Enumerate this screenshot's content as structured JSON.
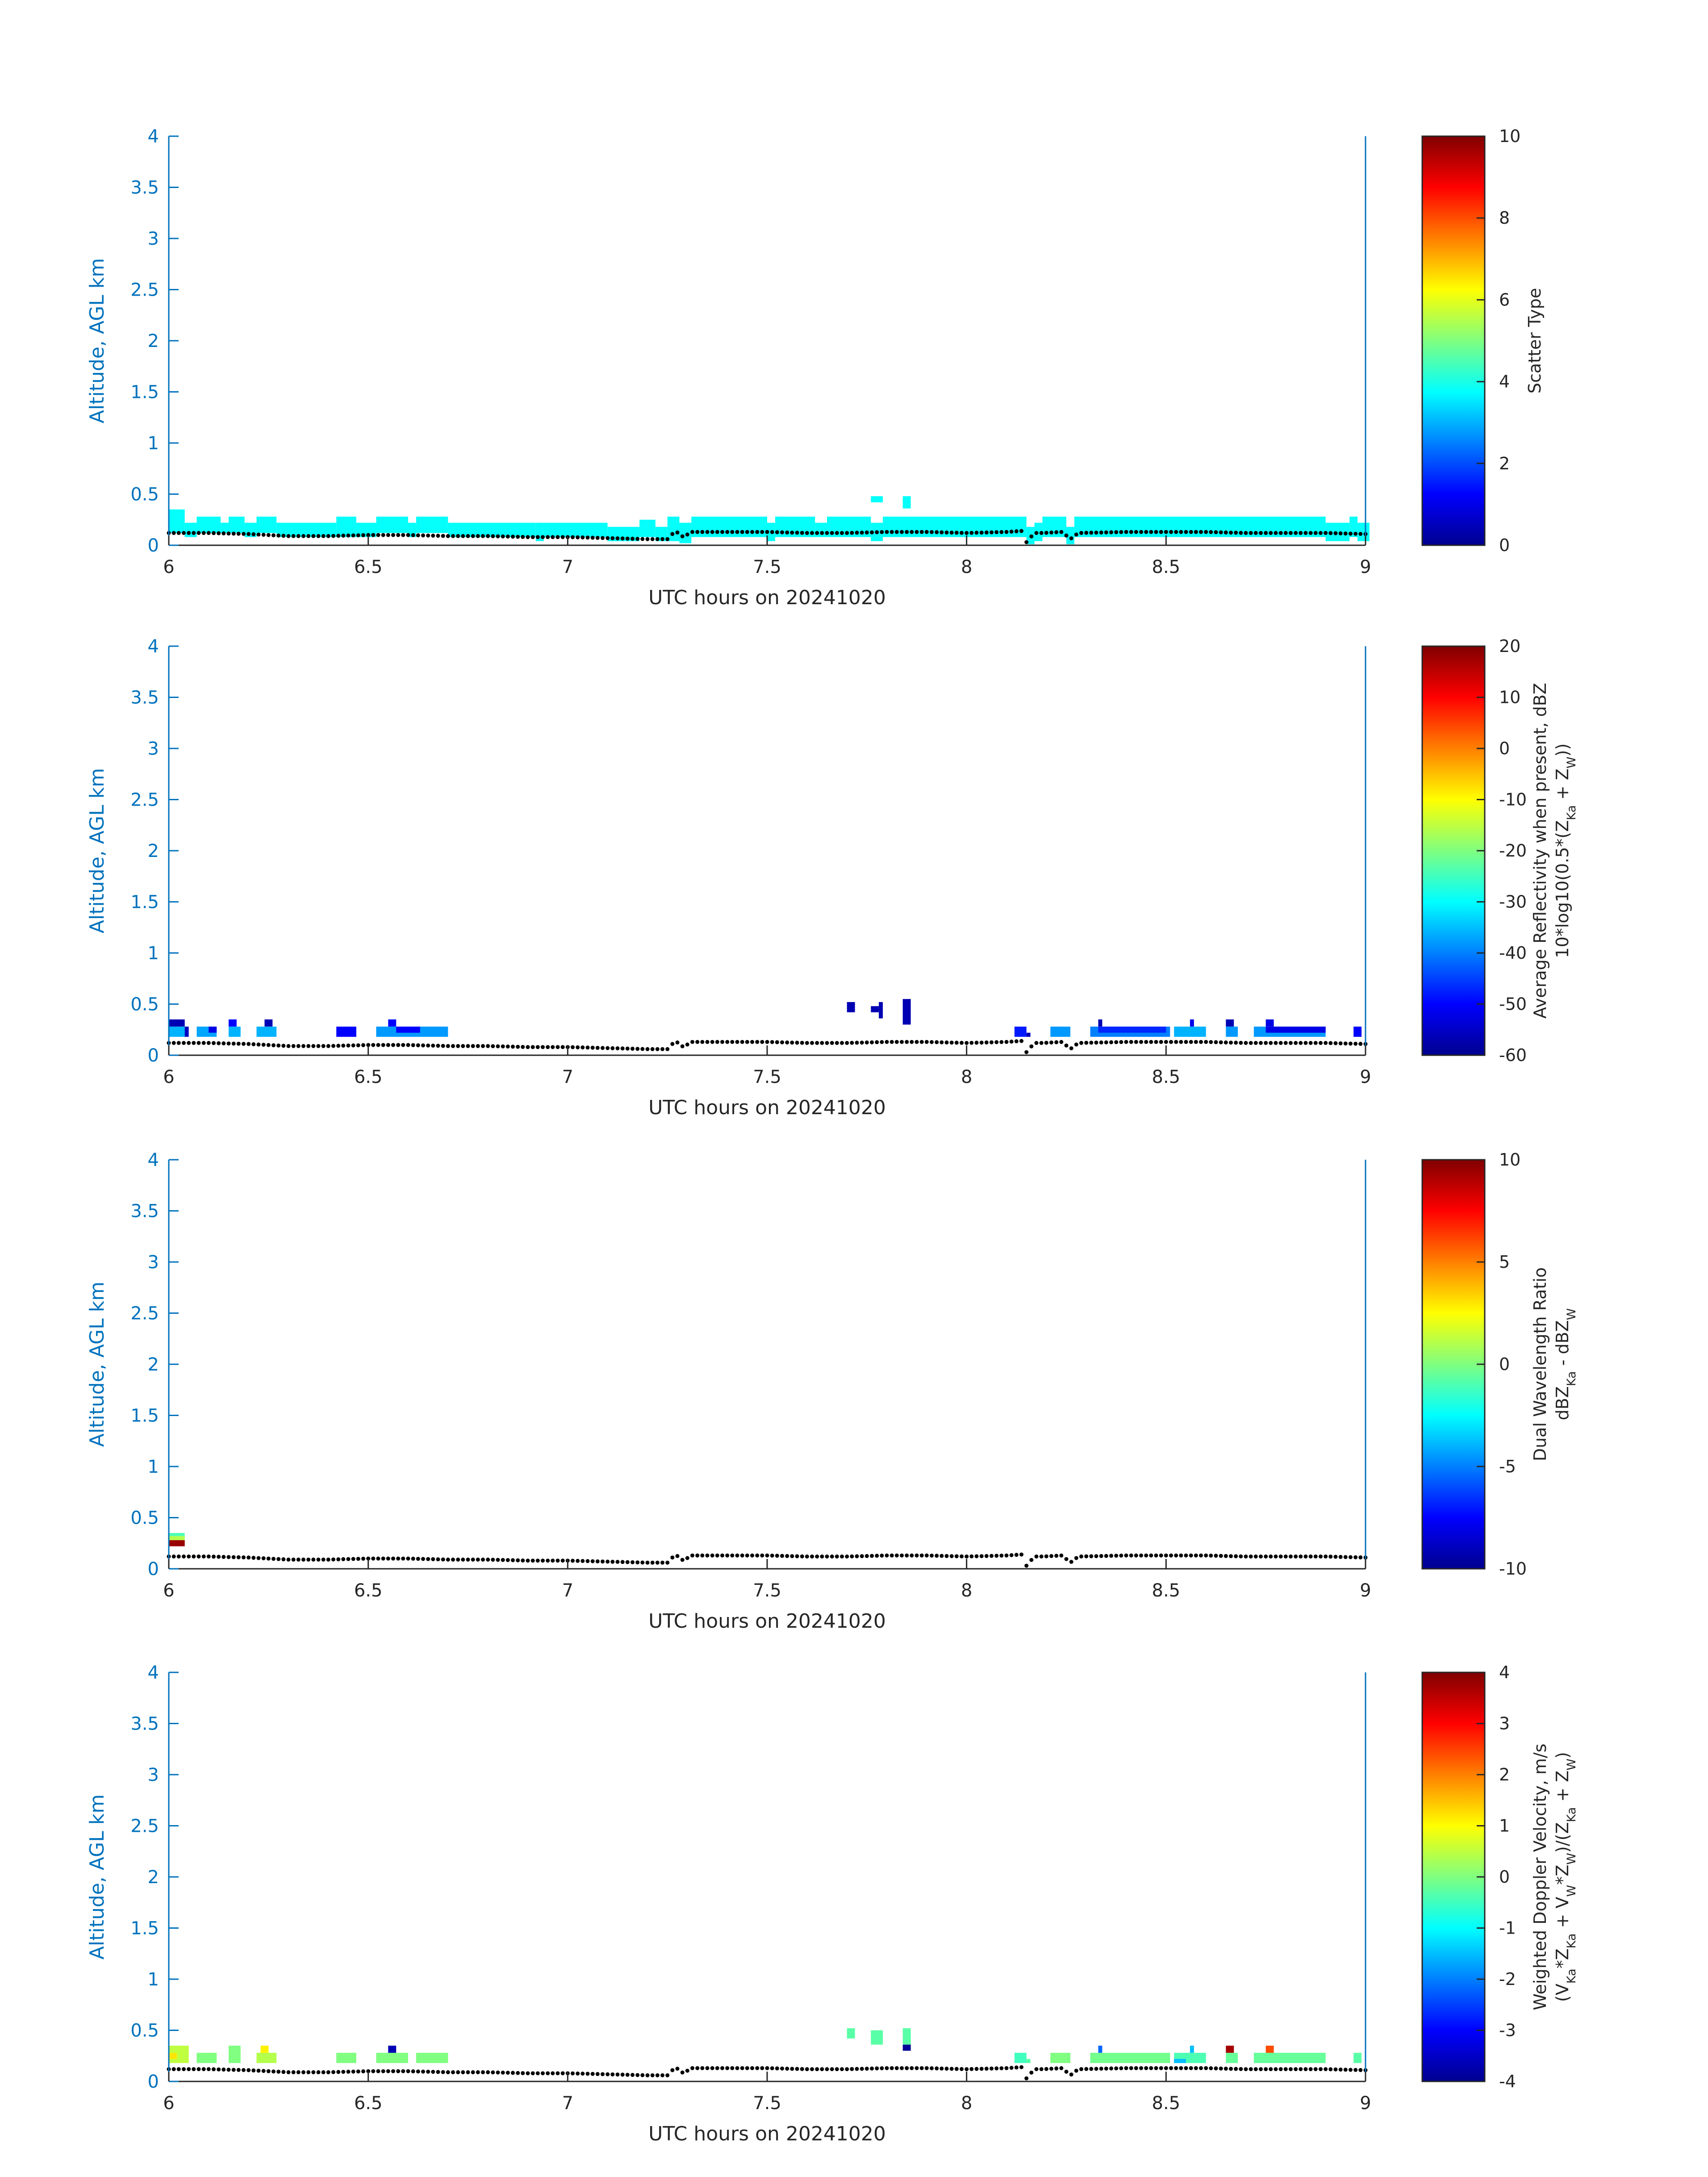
{
  "figure": {
    "colors": {
      "axis_blue": "#0072bd",
      "text_dark": "#262626",
      "ground": "#000000",
      "cb_border": "#262626"
    }
  },
  "chart_data": [
    {
      "type": "heatmap",
      "xlabel": "UTC hours on 20241020",
      "ylabel": "Altitude, AGL km",
      "xlim": [
        6,
        9
      ],
      "ylim": [
        0,
        4
      ],
      "xticks": [
        "6",
        "6.5",
        "7",
        "7.5",
        "8",
        "8.5",
        "9"
      ],
      "yticks": [
        "0",
        "0.5",
        "1",
        "1.5",
        "2",
        "2.5",
        "3",
        "3.5",
        "4"
      ],
      "colorbar": {
        "label_lines": [
          "Scatter Type"
        ],
        "clim": [
          0,
          10
        ],
        "ticks": [
          "0",
          "2",
          "4",
          "6",
          "8",
          "10"
        ]
      },
      "cells": [
        {
          "t0": 6.0,
          "t1": 6.04,
          "z0": 0.12,
          "z1": 0.35,
          "v": 3.8
        },
        {
          "t0": 6.04,
          "t1": 6.07,
          "z0": 0.08,
          "z1": 0.22,
          "v": 3.8
        },
        {
          "t0": 6.07,
          "t1": 6.13,
          "z0": 0.12,
          "z1": 0.28,
          "v": 3.8
        },
        {
          "t0": 6.13,
          "t1": 6.15,
          "z0": 0.12,
          "z1": 0.22,
          "v": 3.8
        },
        {
          "t0": 6.15,
          "t1": 6.19,
          "z0": 0.12,
          "z1": 0.28,
          "v": 3.8
        },
        {
          "t0": 6.19,
          "t1": 6.22,
          "z0": 0.08,
          "z1": 0.22,
          "v": 3.8
        },
        {
          "t0": 6.22,
          "t1": 6.27,
          "z0": 0.12,
          "z1": 0.28,
          "v": 3.8
        },
        {
          "t0": 6.27,
          "t1": 6.42,
          "z0": 0.08,
          "z1": 0.22,
          "v": 3.8
        },
        {
          "t0": 6.42,
          "t1": 6.47,
          "z0": 0.08,
          "z1": 0.28,
          "v": 3.8
        },
        {
          "t0": 6.47,
          "t1": 6.52,
          "z0": 0.08,
          "z1": 0.22,
          "v": 3.8
        },
        {
          "t0": 6.52,
          "t1": 6.6,
          "z0": 0.12,
          "z1": 0.28,
          "v": 3.8
        },
        {
          "t0": 6.6,
          "t1": 6.62,
          "z0": 0.08,
          "z1": 0.22,
          "v": 3.8
        },
        {
          "t0": 6.62,
          "t1": 6.7,
          "z0": 0.12,
          "z1": 0.28,
          "v": 3.8
        },
        {
          "t0": 6.7,
          "t1": 6.92,
          "z0": 0.08,
          "z1": 0.22,
          "v": 3.8
        },
        {
          "t0": 6.92,
          "t1": 6.94,
          "z0": 0.04,
          "z1": 0.22,
          "v": 3.8
        },
        {
          "t0": 6.94,
          "t1": 7.1,
          "z0": 0.08,
          "z1": 0.22,
          "v": 3.8
        },
        {
          "t0": 7.1,
          "t1": 7.18,
          "z0": 0.04,
          "z1": 0.18,
          "v": 3.8
        },
        {
          "t0": 7.18,
          "t1": 7.22,
          "z0": 0.08,
          "z1": 0.25,
          "v": 3.8
        },
        {
          "t0": 7.22,
          "t1": 7.25,
          "z0": 0.04,
          "z1": 0.18,
          "v": 3.8
        },
        {
          "t0": 7.25,
          "t1": 7.28,
          "z0": 0.04,
          "z1": 0.28,
          "v": 3.8
        },
        {
          "t0": 7.28,
          "t1": 7.31,
          "z0": 0.02,
          "z1": 0.22,
          "v": 3.8
        },
        {
          "t0": 7.31,
          "t1": 7.5,
          "z0": 0.08,
          "z1": 0.28,
          "v": 3.8
        },
        {
          "t0": 7.5,
          "t1": 7.52,
          "z0": 0.04,
          "z1": 0.22,
          "v": 3.8
        },
        {
          "t0": 7.52,
          "t1": 7.62,
          "z0": 0.08,
          "z1": 0.28,
          "v": 3.8
        },
        {
          "t0": 7.62,
          "t1": 7.65,
          "z0": 0.08,
          "z1": 0.22,
          "v": 3.8
        },
        {
          "t0": 7.65,
          "t1": 7.76,
          "z0": 0.08,
          "z1": 0.28,
          "v": 3.8
        },
        {
          "t0": 7.76,
          "t1": 7.79,
          "z0": 0.04,
          "z1": 0.22,
          "v": 3.8
        },
        {
          "t0": 7.79,
          "t1": 8.15,
          "z0": 0.08,
          "z1": 0.28,
          "v": 3.8
        },
        {
          "t0": 8.15,
          "t1": 8.17,
          "z0": 0.01,
          "z1": 0.18,
          "v": 3.8
        },
        {
          "t0": 8.17,
          "t1": 8.19,
          "z0": 0.04,
          "z1": 0.22,
          "v": 3.8
        },
        {
          "t0": 8.19,
          "t1": 8.25,
          "z0": 0.08,
          "z1": 0.28,
          "v": 3.8
        },
        {
          "t0": 8.25,
          "t1": 8.27,
          "z0": 0.01,
          "z1": 0.18,
          "v": 3.8
        },
        {
          "t0": 8.27,
          "t1": 8.9,
          "z0": 0.08,
          "z1": 0.28,
          "v": 3.8
        },
        {
          "t0": 8.9,
          "t1": 8.96,
          "z0": 0.04,
          "z1": 0.22,
          "v": 3.8
        },
        {
          "t0": 8.96,
          "t1": 8.98,
          "z0": 0.08,
          "z1": 0.28,
          "v": 3.8
        },
        {
          "t0": 8.98,
          "t1": 9.01,
          "z0": 0.04,
          "z1": 0.22,
          "v": 3.8
        },
        {
          "t0": 7.76,
          "t1": 7.79,
          "z0": 0.42,
          "z1": 0.48,
          "v": 3.8
        },
        {
          "t0": 7.84,
          "t1": 7.86,
          "z0": 0.36,
          "z1": 0.48,
          "v": 3.8
        }
      ]
    },
    {
      "type": "heatmap",
      "xlabel": "UTC hours on 20241020",
      "ylabel": "Altitude, AGL km",
      "xlim": [
        6,
        9
      ],
      "ylim": [
        0,
        4
      ],
      "xticks": [
        "6",
        "6.5",
        "7",
        "7.5",
        "8",
        "8.5",
        "9"
      ],
      "yticks": [
        "0",
        "0.5",
        "1",
        "1.5",
        "2",
        "2.5",
        "3",
        "3.5",
        "4"
      ],
      "colorbar": {
        "label_lines": [
          "Average Reflectivity when present, dBZ",
          "10*log10(0.5*(Z_{Ka} + Z_{W}))"
        ],
        "clim": [
          -60,
          20
        ],
        "ticks": [
          "-60",
          "-50",
          "-40",
          "-30",
          "-20",
          "-10",
          "0",
          "10",
          "20"
        ]
      },
      "cells": [
        {
          "t0": 6.0,
          "t1": 6.04,
          "z0": 0.18,
          "z1": 0.28,
          "v": -36
        },
        {
          "t0": 6.0,
          "t1": 6.04,
          "z0": 0.28,
          "z1": 0.35,
          "v": -56
        },
        {
          "t0": 6.04,
          "t1": 6.05,
          "z0": 0.18,
          "z1": 0.28,
          "v": -55
        },
        {
          "t0": 6.07,
          "t1": 6.12,
          "z0": 0.18,
          "z1": 0.28,
          "v": -37
        },
        {
          "t0": 6.1,
          "t1": 6.12,
          "z0": 0.22,
          "z1": 0.28,
          "v": -52
        },
        {
          "t0": 6.15,
          "t1": 6.18,
          "z0": 0.18,
          "z1": 0.28,
          "v": -36
        },
        {
          "t0": 6.15,
          "t1": 6.17,
          "z0": 0.28,
          "z1": 0.35,
          "v": -50
        },
        {
          "t0": 6.22,
          "t1": 6.27,
          "z0": 0.18,
          "z1": 0.28,
          "v": -36
        },
        {
          "t0": 6.24,
          "t1": 6.26,
          "z0": 0.28,
          "z1": 0.35,
          "v": -56
        },
        {
          "t0": 6.42,
          "t1": 6.47,
          "z0": 0.18,
          "z1": 0.28,
          "v": -50
        },
        {
          "t0": 6.52,
          "t1": 6.7,
          "z0": 0.18,
          "z1": 0.28,
          "v": -38
        },
        {
          "t0": 6.55,
          "t1": 6.57,
          "z0": 0.28,
          "z1": 0.35,
          "v": -50
        },
        {
          "t0": 6.57,
          "t1": 6.63,
          "z0": 0.22,
          "z1": 0.28,
          "v": -50
        },
        {
          "t0": 7.7,
          "t1": 7.72,
          "z0": 0.42,
          "z1": 0.52,
          "v": -56
        },
        {
          "t0": 7.76,
          "t1": 7.78,
          "z0": 0.42,
          "z1": 0.48,
          "v": -56
        },
        {
          "t0": 7.78,
          "t1": 7.79,
          "z0": 0.36,
          "z1": 0.52,
          "v": -56
        },
        {
          "t0": 7.84,
          "t1": 7.86,
          "z0": 0.3,
          "z1": 0.55,
          "v": -56
        },
        {
          "t0": 8.12,
          "t1": 8.15,
          "z0": 0.18,
          "z1": 0.28,
          "v": -48
        },
        {
          "t0": 8.15,
          "t1": 8.16,
          "z0": 0.18,
          "z1": 0.22,
          "v": -56
        },
        {
          "t0": 8.21,
          "t1": 8.26,
          "z0": 0.18,
          "z1": 0.28,
          "v": -38
        },
        {
          "t0": 8.31,
          "t1": 8.51,
          "z0": 0.18,
          "z1": 0.28,
          "v": -40
        },
        {
          "t0": 8.33,
          "t1": 8.5,
          "z0": 0.22,
          "z1": 0.28,
          "v": -47
        },
        {
          "t0": 8.33,
          "t1": 8.34,
          "z0": 0.28,
          "z1": 0.35,
          "v": -56
        },
        {
          "t0": 8.52,
          "t1": 8.6,
          "z0": 0.18,
          "z1": 0.28,
          "v": -36
        },
        {
          "t0": 8.56,
          "t1": 8.57,
          "z0": 0.28,
          "z1": 0.35,
          "v": -52
        },
        {
          "t0": 8.65,
          "t1": 8.68,
          "z0": 0.18,
          "z1": 0.28,
          "v": -38
        },
        {
          "t0": 8.65,
          "t1": 8.67,
          "z0": 0.28,
          "z1": 0.35,
          "v": -56
        },
        {
          "t0": 8.72,
          "t1": 8.9,
          "z0": 0.18,
          "z1": 0.28,
          "v": -38
        },
        {
          "t0": 8.75,
          "t1": 8.9,
          "z0": 0.22,
          "z1": 0.28,
          "v": -52
        },
        {
          "t0": 8.75,
          "t1": 8.77,
          "z0": 0.28,
          "z1": 0.35,
          "v": -52
        },
        {
          "t0": 8.97,
          "t1": 8.99,
          "z0": 0.18,
          "z1": 0.28,
          "v": -50
        }
      ]
    },
    {
      "type": "heatmap",
      "xlabel": "UTC hours on 20241020",
      "ylabel": "Altitude, AGL km",
      "xlim": [
        6,
        9
      ],
      "ylim": [
        0,
        4
      ],
      "xticks": [
        "6",
        "6.5",
        "7",
        "7.5",
        "8",
        "8.5",
        "9"
      ],
      "yticks": [
        "0",
        "0.5",
        "1",
        "1.5",
        "2",
        "2.5",
        "3",
        "3.5",
        "4"
      ],
      "colorbar": {
        "label_lines": [
          "Dual Wavelength Ratio",
          "dBZ_{Ka} - dBZ_{W}"
        ],
        "clim": [
          -10,
          10
        ],
        "ticks": [
          "-10",
          "-5",
          "0",
          "5",
          "10"
        ]
      },
      "cells": [
        {
          "t0": 6.0,
          "t1": 6.04,
          "z0": 0.22,
          "z1": 0.28,
          "v": 9.5
        },
        {
          "t0": 6.0,
          "t1": 6.04,
          "z0": 0.28,
          "z1": 0.32,
          "v": 1.0
        },
        {
          "t0": 6.0,
          "t1": 6.04,
          "z0": 0.32,
          "z1": 0.35,
          "v": -1.0
        }
      ]
    },
    {
      "type": "heatmap",
      "xlabel": "UTC hours on 20241020",
      "ylabel": "Altitude, AGL km",
      "xlim": [
        6,
        9
      ],
      "ylim": [
        0,
        4
      ],
      "xticks": [
        "6",
        "6.5",
        "7",
        "7.5",
        "8",
        "8.5",
        "9"
      ],
      "yticks": [
        "0",
        "0.5",
        "1",
        "1.5",
        "2",
        "2.5",
        "3",
        "3.5",
        "4"
      ],
      "colorbar": {
        "label_lines": [
          "Weighted Doppler Velocity, m/s",
          "(V_{Ka}*Z_{Ka} + V_{W}*Z_{W})/(Z_{Ka} + Z_{W})"
        ],
        "clim": [
          -4,
          4
        ],
        "ticks": [
          "-4",
          "-3",
          "-2",
          "-1",
          "0",
          "1",
          "2",
          "3",
          "4"
        ]
      },
      "cells": [
        {
          "t0": 6.0,
          "t1": 6.05,
          "z0": 0.18,
          "z1": 0.35,
          "v": 0.5
        },
        {
          "t0": 6.0,
          "t1": 6.02,
          "z0": 0.22,
          "z1": 0.28,
          "v": 1.2
        },
        {
          "t0": 6.07,
          "t1": 6.12,
          "z0": 0.18,
          "z1": 0.28,
          "v": 0.0
        },
        {
          "t0": 6.15,
          "t1": 6.18,
          "z0": 0.18,
          "z1": 0.35,
          "v": 0.0
        },
        {
          "t0": 6.22,
          "t1": 6.27,
          "z0": 0.18,
          "z1": 0.28,
          "v": 0.4
        },
        {
          "t0": 6.23,
          "t1": 6.25,
          "z0": 0.28,
          "z1": 0.35,
          "v": 1.1
        },
        {
          "t0": 6.42,
          "t1": 6.47,
          "z0": 0.18,
          "z1": 0.28,
          "v": 0.0
        },
        {
          "t0": 6.52,
          "t1": 6.6,
          "z0": 0.18,
          "z1": 0.28,
          "v": 0.0
        },
        {
          "t0": 6.55,
          "t1": 6.57,
          "z0": 0.28,
          "z1": 0.35,
          "v": -3.6
        },
        {
          "t0": 6.62,
          "t1": 6.7,
          "z0": 0.18,
          "z1": 0.28,
          "v": 0.0
        },
        {
          "t0": 7.7,
          "t1": 7.72,
          "z0": 0.42,
          "z1": 0.52,
          "v": -0.3
        },
        {
          "t0": 7.76,
          "t1": 7.79,
          "z0": 0.36,
          "z1": 0.5,
          "v": -0.3
        },
        {
          "t0": 7.84,
          "t1": 7.86,
          "z0": 0.36,
          "z1": 0.52,
          "v": -0.3
        },
        {
          "t0": 7.84,
          "t1": 7.86,
          "z0": 0.3,
          "z1": 0.36,
          "v": -3.8
        },
        {
          "t0": 8.12,
          "t1": 8.15,
          "z0": 0.18,
          "z1": 0.28,
          "v": -0.5
        },
        {
          "t0": 8.15,
          "t1": 8.16,
          "z0": 0.18,
          "z1": 0.22,
          "v": -0.3
        },
        {
          "t0": 8.21,
          "t1": 8.26,
          "z0": 0.18,
          "z1": 0.28,
          "v": 0.0
        },
        {
          "t0": 8.31,
          "t1": 8.51,
          "z0": 0.18,
          "z1": 0.28,
          "v": -0.1
        },
        {
          "t0": 8.33,
          "t1": 8.34,
          "z0": 0.28,
          "z1": 0.35,
          "v": -2.2
        },
        {
          "t0": 8.52,
          "t1": 8.6,
          "z0": 0.18,
          "z1": 0.28,
          "v": -0.4
        },
        {
          "t0": 8.52,
          "t1": 8.55,
          "z0": 0.18,
          "z1": 0.22,
          "v": -1.5
        },
        {
          "t0": 8.56,
          "t1": 8.57,
          "z0": 0.28,
          "z1": 0.35,
          "v": -1.5
        },
        {
          "t0": 8.65,
          "t1": 8.68,
          "z0": 0.18,
          "z1": 0.28,
          "v": -0.2
        },
        {
          "t0": 8.65,
          "t1": 8.67,
          "z0": 0.28,
          "z1": 0.35,
          "v": 3.7
        },
        {
          "t0": 8.72,
          "t1": 8.9,
          "z0": 0.18,
          "z1": 0.28,
          "v": -0.2
        },
        {
          "t0": 8.75,
          "t1": 8.77,
          "z0": 0.28,
          "z1": 0.35,
          "v": 2.4
        },
        {
          "t0": 8.97,
          "t1": 8.99,
          "z0": 0.18,
          "z1": 0.28,
          "v": -0.3
        }
      ]
    }
  ],
  "ground_track": {
    "t": [
      6.0,
      6.1,
      6.2,
      6.3,
      6.4,
      6.5,
      6.6,
      6.7,
      6.8,
      6.9,
      7.0,
      7.1,
      7.2,
      7.25,
      7.27,
      7.29,
      7.31,
      7.4,
      7.5,
      7.6,
      7.7,
      7.8,
      7.9,
      8.0,
      8.1,
      8.14,
      8.15,
      8.17,
      8.19,
      8.24,
      8.26,
      8.28,
      8.4,
      8.5,
      8.6,
      8.7,
      8.8,
      8.9,
      9.0
    ],
    "z": [
      0.12,
      0.12,
      0.11,
      0.09,
      0.09,
      0.1,
      0.1,
      0.09,
      0.09,
      0.08,
      0.08,
      0.07,
      0.06,
      0.06,
      0.14,
      0.08,
      0.13,
      0.13,
      0.13,
      0.12,
      0.12,
      0.13,
      0.13,
      0.12,
      0.13,
      0.14,
      0.03,
      0.12,
      0.12,
      0.13,
      0.06,
      0.12,
      0.13,
      0.13,
      0.13,
      0.12,
      0.12,
      0.12,
      0.11
    ]
  }
}
